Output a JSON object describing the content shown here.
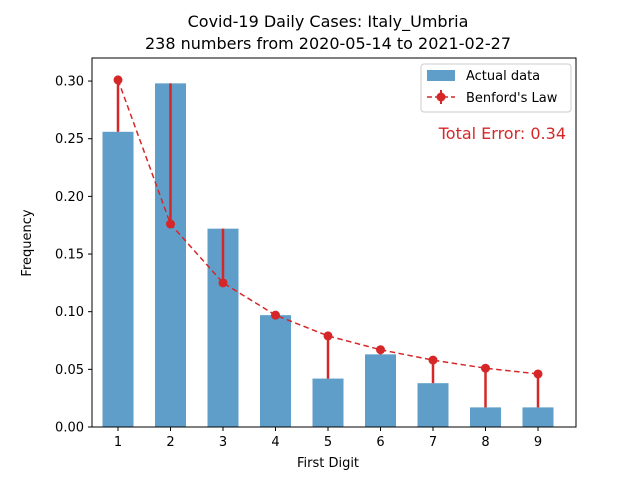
{
  "chart_data": {
    "type": "bar",
    "title": "Covid-19 Daily Cases: Italy_Umbria",
    "subtitle": "238 numbers from 2020-05-14 to 2021-02-27",
    "xlabel": "First Digit",
    "ylabel": "Frequency",
    "categories": [
      "1",
      "2",
      "3",
      "4",
      "5",
      "6",
      "7",
      "8",
      "9"
    ],
    "ylim": [
      0,
      0.32
    ],
    "yticks": [
      0.0,
      0.05,
      0.1,
      0.15,
      0.2,
      0.25,
      0.3
    ],
    "ytick_labels": [
      "0.00",
      "0.05",
      "0.10",
      "0.15",
      "0.20",
      "0.25",
      "0.30"
    ],
    "grid": false,
    "legend_position": "top-right",
    "series": [
      {
        "name": "Actual data",
        "kind": "bar",
        "color": "#5f9ec9",
        "values": [
          0.256,
          0.298,
          0.172,
          0.097,
          0.042,
          0.063,
          0.038,
          0.017,
          0.017
        ]
      },
      {
        "name": "Benford's Law",
        "kind": "line",
        "style": "dashed",
        "marker": "circle",
        "color": "#d62728",
        "values": [
          0.301,
          0.176,
          0.125,
          0.097,
          0.079,
          0.067,
          0.058,
          0.051,
          0.046
        ]
      }
    ],
    "annotation": {
      "text": "Total Error: 0.34",
      "color": "#d62728",
      "position": "top-right"
    }
  }
}
